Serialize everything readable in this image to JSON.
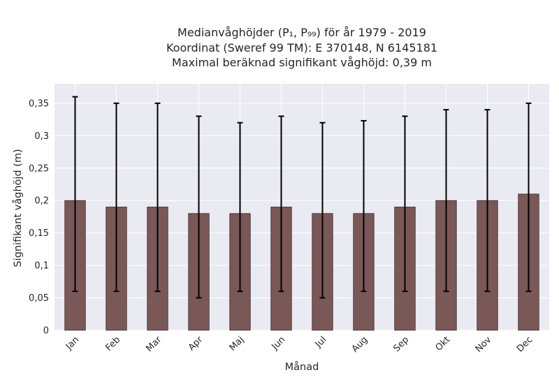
{
  "chart_data": {
    "type": "bar",
    "title_lines": [
      "Medianvåghöjder (P₁, P₉₉) för år 1979 - 2019",
      "Koordinat (Sweref 99 TM): E 370148, N 6145181",
      "Maximal beräknad signifikant våghöjd: 0,39 m"
    ],
    "xlabel": "Månad",
    "ylabel": "Signifikant våghöjd (m)",
    "categories": [
      "Jan",
      "Feb",
      "Mar",
      "Apr",
      "Maj",
      "Jun",
      "Jul",
      "Aug",
      "Sep",
      "Okt",
      "Nov",
      "Dec"
    ],
    "values": [
      0.2,
      0.19,
      0.19,
      0.18,
      0.18,
      0.19,
      0.18,
      0.18,
      0.19,
      0.2,
      0.2,
      0.21
    ],
    "error_low": [
      0.06,
      0.06,
      0.06,
      0.05,
      0.06,
      0.06,
      0.05,
      0.06,
      0.06,
      0.06,
      0.06,
      0.06
    ],
    "error_high": [
      0.36,
      0.35,
      0.35,
      0.33,
      0.32,
      0.33,
      0.32,
      0.323,
      0.33,
      0.34,
      0.34,
      0.35
    ],
    "ylim": [
      0,
      0.38
    ],
    "yticks": [
      0,
      0.05,
      0.1,
      0.15,
      0.2,
      0.25,
      0.3,
      0.35
    ],
    "ytick_labels": [
      "0",
      "0,05",
      "0,1",
      "0,15",
      "0,2",
      "0,25",
      "0,3",
      "0,35"
    ],
    "grid": true,
    "colors": {
      "bar": "#7a5858",
      "bar_edge": "#3b2a2a",
      "error": "#000000",
      "plot_bg": "#eaeaf2",
      "grid": "#ffffff"
    }
  }
}
